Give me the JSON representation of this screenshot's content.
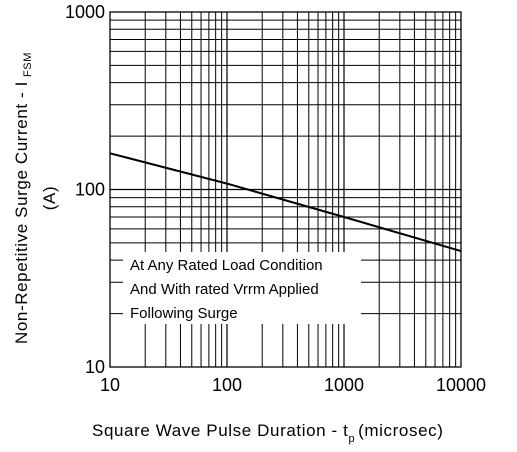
{
  "chart_data": {
    "type": "line",
    "xscale": "log",
    "yscale": "log",
    "xlim": [
      10,
      10000
    ],
    "ylim": [
      10,
      1000
    ],
    "grid": true,
    "x_ticks": [
      "10",
      "100",
      "1000",
      "10000"
    ],
    "y_ticks": [
      "10",
      "100",
      "1000"
    ],
    "xlabel": {
      "main": "Square Wave Pulse Duration - t",
      "sub": "p",
      "suffix": "(microsec)"
    },
    "ylabel": {
      "main": "Non-Repetitive  Surge  Current - I",
      "sub": "FSM",
      "second_line": "(A)"
    },
    "annotations": [
      "At Any Rated Load Condition",
      "And With rated Vrrm Applied",
      "Following Surge"
    ],
    "series": [
      {
        "x": [
          10,
          100,
          1000,
          10000
        ],
        "y": [
          160,
          108,
          70,
          45
        ]
      }
    ],
    "line_color": "#000000"
  }
}
